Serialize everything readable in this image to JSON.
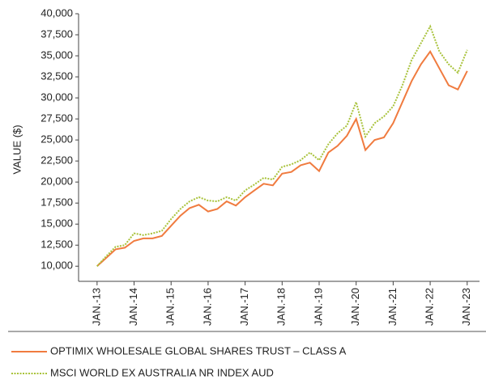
{
  "chart_data": {
    "type": "line",
    "y_label": "VALUE ($)",
    "x": [
      "2013-01",
      "2013-04",
      "2013-07",
      "2013-10",
      "2014-01",
      "2014-04",
      "2014-07",
      "2014-10",
      "2015-01",
      "2015-04",
      "2015-07",
      "2015-10",
      "2016-01",
      "2016-04",
      "2016-07",
      "2016-10",
      "2017-01",
      "2017-04",
      "2017-07",
      "2017-10",
      "2018-01",
      "2018-04",
      "2018-07",
      "2018-10",
      "2019-01",
      "2019-04",
      "2019-07",
      "2019-10",
      "2020-01",
      "2020-04",
      "2020-07",
      "2020-10",
      "2021-01",
      "2021-04",
      "2021-07",
      "2021-10",
      "2022-01",
      "2022-04",
      "2022-07",
      "2022-10",
      "2023-01"
    ],
    "series": [
      {
        "name": "OPTIMIX WHOLESALE GLOBAL SHARES TRUST – CLASS A",
        "color": "#f07b3f",
        "dash": "none",
        "values": [
          10000,
          11000,
          12000,
          12200,
          13000,
          13300,
          13300,
          13600,
          14800,
          16000,
          16900,
          17300,
          16500,
          16800,
          17700,
          17200,
          18200,
          19000,
          19800,
          19600,
          21000,
          21200,
          22000,
          22300,
          21300,
          23500,
          24300,
          25500,
          27500,
          23800,
          25000,
          25300,
          27000,
          29500,
          32000,
          34000,
          35500,
          33500,
          31500,
          31000,
          33200
        ]
      },
      {
        "name": "MSCI WORLD EX AUSTRALIA NR INDEX AUD",
        "color": "#a8c23a",
        "dash": "2,1.5",
        "values": [
          10000,
          11200,
          12300,
          12500,
          13900,
          13700,
          13900,
          14200,
          15600,
          16800,
          17700,
          18200,
          17800,
          17700,
          18200,
          17800,
          19000,
          19700,
          20500,
          20300,
          21800,
          22100,
          22600,
          23500,
          22600,
          24500,
          25800,
          26700,
          29500,
          25400,
          27000,
          27800,
          29000,
          31500,
          34500,
          36500,
          38500,
          35500,
          34000,
          33000,
          35700
        ]
      }
    ],
    "xlim": [
      "2012-07",
      "2023-05"
    ],
    "xticks": [
      {
        "value": "2013-01",
        "label": "JAN.-13"
      },
      {
        "value": "2014-01",
        "label": "JAN.-14"
      },
      {
        "value": "2015-01",
        "label": "JAN.-15"
      },
      {
        "value": "2016-01",
        "label": "JAN.-16"
      },
      {
        "value": "2017-01",
        "label": "JAN.-17"
      },
      {
        "value": "2018-01",
        "label": "JAN.-18"
      },
      {
        "value": "2019-01",
        "label": "JAN.-19"
      },
      {
        "value": "2020-01",
        "label": "JAN.-20"
      },
      {
        "value": "2021-01",
        "label": "JAN.-21"
      },
      {
        "value": "2022-01",
        "label": "JAN.-22"
      },
      {
        "value": "2023-01",
        "label": "JAN.-23"
      }
    ],
    "ylim": [
      8200,
      40000
    ],
    "yticks": [
      {
        "value": 10000,
        "label": "10,000"
      },
      {
        "value": 12500,
        "label": "12,500"
      },
      {
        "value": 15000,
        "label": "15,000"
      },
      {
        "value": 17500,
        "label": "17,500"
      },
      {
        "value": 20000,
        "label": "20,000"
      },
      {
        "value": 22500,
        "label": "22,500"
      },
      {
        "value": 25000,
        "label": "25,000"
      },
      {
        "value": 27500,
        "label": "27,500"
      },
      {
        "value": 30000,
        "label": "30,000"
      },
      {
        "value": 32500,
        "label": "32,500"
      },
      {
        "value": 35000,
        "label": "35,000"
      },
      {
        "value": 37500,
        "label": "37,500"
      },
      {
        "value": 40000,
        "label": "40,000"
      }
    ]
  }
}
